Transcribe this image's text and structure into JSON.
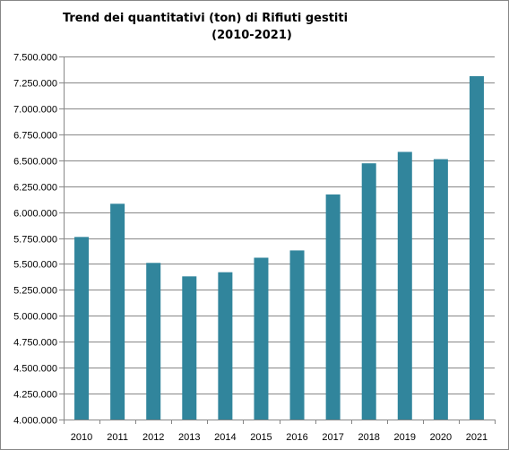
{
  "chart_data": {
    "type": "bar",
    "title": "Trend dei quantitativi (ton) di Rifiuti gestiti",
    "subtitle": "(2010-2021)",
    "xlabel": "",
    "ylabel": "",
    "categories": [
      "2010",
      "2011",
      "2012",
      "2013",
      "2014",
      "2015",
      "2016",
      "2017",
      "2018",
      "2019",
      "2020",
      "2021"
    ],
    "values": [
      5760000,
      6080000,
      5510000,
      5380000,
      5420000,
      5560000,
      5630000,
      6170000,
      6470000,
      6580000,
      6510000,
      7310000
    ],
    "ylim": [
      4000000,
      7500000
    ],
    "y_ticks": [
      4000000,
      4250000,
      4500000,
      4750000,
      5000000,
      5250000,
      5500000,
      5750000,
      6000000,
      6250000,
      6500000,
      6750000,
      7000000,
      7250000,
      7500000
    ],
    "y_tick_labels": [
      "4.000.000",
      "4.250.000",
      "4.500.000",
      "4.750.000",
      "5.000.000",
      "5.250.000",
      "5.500.000",
      "5.750.000",
      "6.000.000",
      "6.250.000",
      "6.500.000",
      "6.750.000",
      "7.000.000",
      "7.250.000",
      "7.500.000"
    ],
    "grid": true,
    "legend": "none",
    "bar_color": "#31859C",
    "grid_color": "#878787"
  }
}
